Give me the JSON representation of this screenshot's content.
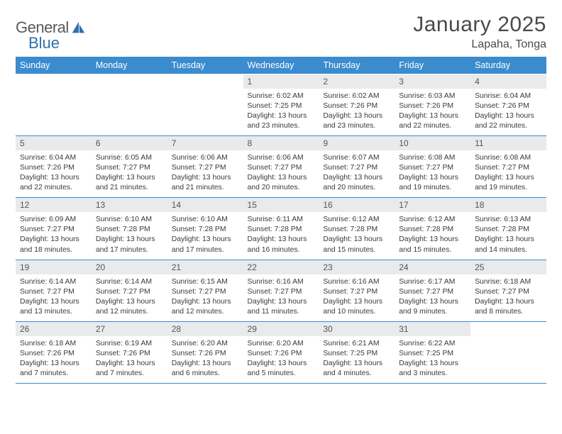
{
  "brand": {
    "text1": "General",
    "text2": "Blue"
  },
  "title": "January 2025",
  "location": "Lapaha, Tonga",
  "colors": {
    "header_bg": "#3b8bcf",
    "header_text": "#ffffff",
    "daynum_bg": "#e9eaec",
    "rule": "#3b8bcf",
    "logo_blue": "#2f6fad"
  },
  "weekdays": [
    "Sunday",
    "Monday",
    "Tuesday",
    "Wednesday",
    "Thursday",
    "Friday",
    "Saturday"
  ],
  "weeks": [
    [
      null,
      null,
      null,
      {
        "n": "1",
        "sr": "6:02 AM",
        "ss": "7:25 PM",
        "dl": "13 hours and 23 minutes."
      },
      {
        "n": "2",
        "sr": "6:02 AM",
        "ss": "7:26 PM",
        "dl": "13 hours and 23 minutes."
      },
      {
        "n": "3",
        "sr": "6:03 AM",
        "ss": "7:26 PM",
        "dl": "13 hours and 22 minutes."
      },
      {
        "n": "4",
        "sr": "6:04 AM",
        "ss": "7:26 PM",
        "dl": "13 hours and 22 minutes."
      }
    ],
    [
      {
        "n": "5",
        "sr": "6:04 AM",
        "ss": "7:26 PM",
        "dl": "13 hours and 22 minutes."
      },
      {
        "n": "6",
        "sr": "6:05 AM",
        "ss": "7:27 PM",
        "dl": "13 hours and 21 minutes."
      },
      {
        "n": "7",
        "sr": "6:06 AM",
        "ss": "7:27 PM",
        "dl": "13 hours and 21 minutes."
      },
      {
        "n": "8",
        "sr": "6:06 AM",
        "ss": "7:27 PM",
        "dl": "13 hours and 20 minutes."
      },
      {
        "n": "9",
        "sr": "6:07 AM",
        "ss": "7:27 PM",
        "dl": "13 hours and 20 minutes."
      },
      {
        "n": "10",
        "sr": "6:08 AM",
        "ss": "7:27 PM",
        "dl": "13 hours and 19 minutes."
      },
      {
        "n": "11",
        "sr": "6:08 AM",
        "ss": "7:27 PM",
        "dl": "13 hours and 19 minutes."
      }
    ],
    [
      {
        "n": "12",
        "sr": "6:09 AM",
        "ss": "7:27 PM",
        "dl": "13 hours and 18 minutes."
      },
      {
        "n": "13",
        "sr": "6:10 AM",
        "ss": "7:28 PM",
        "dl": "13 hours and 17 minutes."
      },
      {
        "n": "14",
        "sr": "6:10 AM",
        "ss": "7:28 PM",
        "dl": "13 hours and 17 minutes."
      },
      {
        "n": "15",
        "sr": "6:11 AM",
        "ss": "7:28 PM",
        "dl": "13 hours and 16 minutes."
      },
      {
        "n": "16",
        "sr": "6:12 AM",
        "ss": "7:28 PM",
        "dl": "13 hours and 15 minutes."
      },
      {
        "n": "17",
        "sr": "6:12 AM",
        "ss": "7:28 PM",
        "dl": "13 hours and 15 minutes."
      },
      {
        "n": "18",
        "sr": "6:13 AM",
        "ss": "7:28 PM",
        "dl": "13 hours and 14 minutes."
      }
    ],
    [
      {
        "n": "19",
        "sr": "6:14 AM",
        "ss": "7:27 PM",
        "dl": "13 hours and 13 minutes."
      },
      {
        "n": "20",
        "sr": "6:14 AM",
        "ss": "7:27 PM",
        "dl": "13 hours and 12 minutes."
      },
      {
        "n": "21",
        "sr": "6:15 AM",
        "ss": "7:27 PM",
        "dl": "13 hours and 12 minutes."
      },
      {
        "n": "22",
        "sr": "6:16 AM",
        "ss": "7:27 PM",
        "dl": "13 hours and 11 minutes."
      },
      {
        "n": "23",
        "sr": "6:16 AM",
        "ss": "7:27 PM",
        "dl": "13 hours and 10 minutes."
      },
      {
        "n": "24",
        "sr": "6:17 AM",
        "ss": "7:27 PM",
        "dl": "13 hours and 9 minutes."
      },
      {
        "n": "25",
        "sr": "6:18 AM",
        "ss": "7:27 PM",
        "dl": "13 hours and 8 minutes."
      }
    ],
    [
      {
        "n": "26",
        "sr": "6:18 AM",
        "ss": "7:26 PM",
        "dl": "13 hours and 7 minutes."
      },
      {
        "n": "27",
        "sr": "6:19 AM",
        "ss": "7:26 PM",
        "dl": "13 hours and 7 minutes."
      },
      {
        "n": "28",
        "sr": "6:20 AM",
        "ss": "7:26 PM",
        "dl": "13 hours and 6 minutes."
      },
      {
        "n": "29",
        "sr": "6:20 AM",
        "ss": "7:26 PM",
        "dl": "13 hours and 5 minutes."
      },
      {
        "n": "30",
        "sr": "6:21 AM",
        "ss": "7:25 PM",
        "dl": "13 hours and 4 minutes."
      },
      {
        "n": "31",
        "sr": "6:22 AM",
        "ss": "7:25 PM",
        "dl": "13 hours and 3 minutes."
      },
      null
    ]
  ],
  "labels": {
    "sunrise": "Sunrise:",
    "sunset": "Sunset:",
    "daylight": "Daylight:"
  }
}
